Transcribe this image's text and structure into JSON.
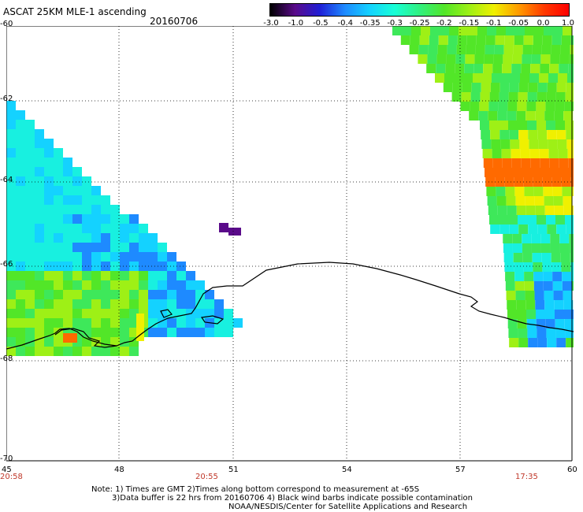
{
  "header": {
    "title": "ASCAT 25KM MLE-1 ascending",
    "date": "20160706"
  },
  "colorbar": {
    "labels": [
      "-3.0",
      "-1.0",
      "-0.5",
      "-0.4",
      "-0.35",
      "-0.3",
      "-0.25",
      "-0.2",
      "-0.15",
      "-0.1",
      "-0.05",
      "0.0",
      "1.0"
    ],
    "colors": [
      "#000000",
      "#5a0a8a",
      "#1f1fd6",
      "#1e8aff",
      "#14d2ff",
      "#18ffd6",
      "#30f080",
      "#52e628",
      "#9ef016",
      "#f0f000",
      "#ff9a00",
      "#ff3a00",
      "#ff0000"
    ]
  },
  "axes": {
    "lat_labels": [
      "-60",
      "-62",
      "-64",
      "-66",
      "-68",
      "-70"
    ],
    "lon_labels": [
      "45",
      "48",
      "51",
      "54",
      "57",
      "60"
    ]
  },
  "times": {
    "left": "20:58",
    "middle": "20:55",
    "right": "17:35"
  },
  "notes": {
    "line1": "Note: 1) Times are GMT 2)Times along bottom correspond to measurement at -65S",
    "line2": "3)Data buffer is 22 hrs from 20160706 4) Black wind barbs indicate possible contamination",
    "line3": "NOAA/NESDIS/Center for Satellite Applications and Research"
  },
  "colors": {
    "cyan": "#18f0e0",
    "blue": "#1e8aff",
    "green": "#3ee85a",
    "yellow": "#f0f000",
    "orange": "#ff6a00",
    "purple": "#5a0a8a"
  }
}
